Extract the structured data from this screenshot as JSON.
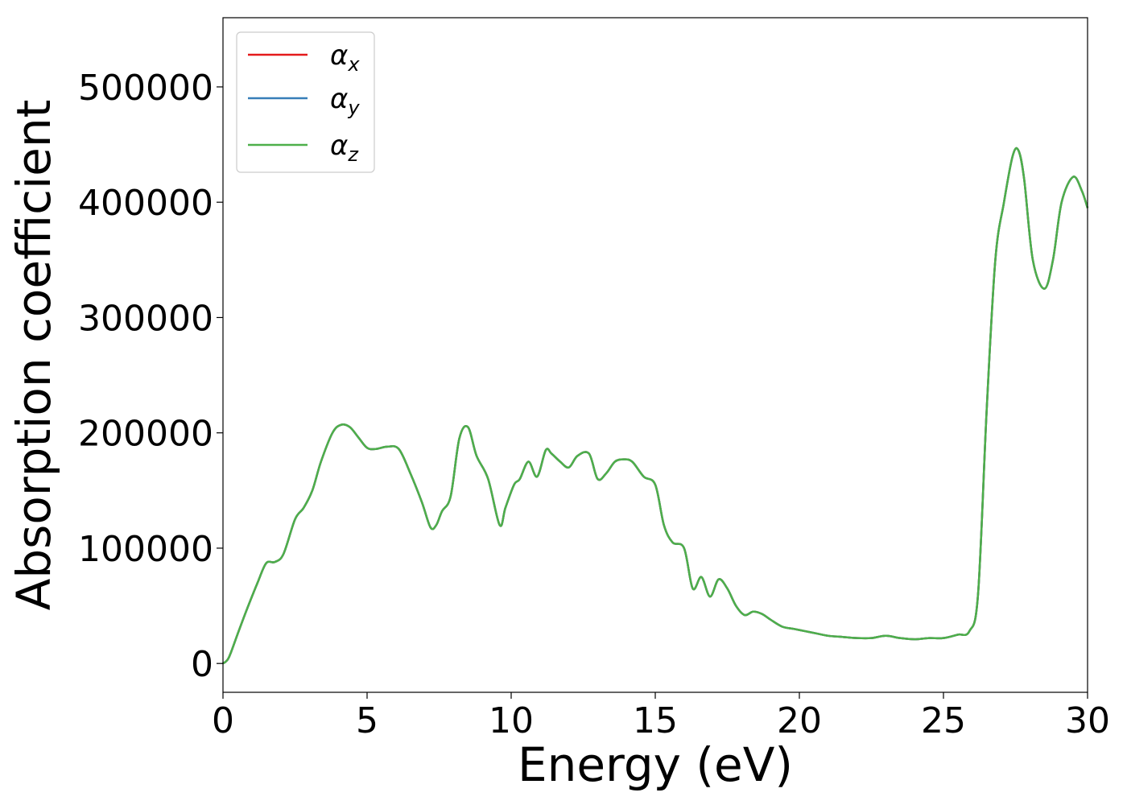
{
  "chart_data": {
    "type": "line",
    "xlabel": "Energy (eV)",
    "ylabel": "Absorption coefficient",
    "xlim": [
      0,
      30
    ],
    "ylim": [
      -25000,
      560000
    ],
    "xticks": [
      0,
      5,
      10,
      15,
      20,
      25,
      30
    ],
    "xtick_labels": [
      "0",
      "5",
      "10",
      "15",
      "20",
      "25",
      "30"
    ],
    "yticks": [
      0,
      100000,
      200000,
      300000,
      400000,
      500000
    ],
    "ytick_labels": [
      "0",
      "100000",
      "200000",
      "300000",
      "400000",
      "500000"
    ],
    "grid": false,
    "legend_position": "top-left",
    "x": [
      0,
      0.2,
      0.5,
      0.8,
      1.2,
      1.5,
      1.8,
      2.1,
      2.5,
      2.8,
      3.1,
      3.4,
      3.8,
      4.1,
      4.4,
      4.7,
      5.0,
      5.3,
      5.7,
      6.1,
      6.5,
      6.9,
      7.2,
      7.4,
      7.6,
      7.9,
      8.2,
      8.5,
      8.8,
      9.2,
      9.6,
      9.8,
      10.1,
      10.3,
      10.6,
      10.9,
      11.2,
      11.4,
      11.7,
      12.0,
      12.3,
      12.7,
      13.0,
      13.3,
      13.6,
      13.9,
      14.2,
      14.6,
      15.0,
      15.3,
      15.6,
      16.0,
      16.3,
      16.6,
      16.9,
      17.2,
      17.5,
      17.8,
      18.1,
      18.4,
      18.7,
      19.0,
      19.4,
      19.8,
      20.2,
      20.6,
      21.0,
      21.5,
      22.0,
      22.5,
      23.0,
      23.5,
      24.0,
      24.5,
      25.0,
      25.5,
      25.9,
      26.2,
      26.5,
      26.8,
      27.1,
      27.4,
      27.6,
      27.8,
      28.1,
      28.5,
      28.8,
      29.1,
      29.5,
      29.8,
      30.0
    ],
    "series": [
      {
        "name": "α_x",
        "color": "#e41a1c",
        "values": [
          0,
          5000,
          25000,
          45000,
          70000,
          87000,
          88000,
          95000,
          125000,
          135000,
          150000,
          175000,
          200000,
          207000,
          205000,
          196000,
          187000,
          186000,
          188000,
          186000,
          165000,
          140000,
          118000,
          120000,
          132000,
          145000,
          195000,
          205000,
          180000,
          160000,
          120000,
          135000,
          155000,
          160000,
          175000,
          162000,
          185000,
          182000,
          175000,
          170000,
          180000,
          182000,
          160000,
          165000,
          175000,
          177000,
          175000,
          162000,
          155000,
          120000,
          105000,
          100000,
          65000,
          75000,
          58000,
          73000,
          65000,
          50000,
          42000,
          45000,
          43000,
          38000,
          32000,
          30000,
          28000,
          26000,
          24000,
          23000,
          22000,
          22000,
          24000,
          22000,
          21000,
          22000,
          22000,
          25000,
          28000,
          60000,
          220000,
          350000,
          400000,
          440000,
          445000,
          420000,
          350000,
          325000,
          350000,
          400000,
          422000,
          410000,
          395000
        ]
      },
      {
        "name": "α_y",
        "color": "#377eb8",
        "values": [
          0,
          5000,
          25000,
          45000,
          70000,
          87000,
          88000,
          95000,
          125000,
          135000,
          150000,
          175000,
          200000,
          207000,
          205000,
          196000,
          187000,
          186000,
          188000,
          186000,
          165000,
          140000,
          118000,
          120000,
          132000,
          145000,
          195000,
          205000,
          180000,
          160000,
          120000,
          135000,
          155000,
          160000,
          175000,
          162000,
          185000,
          182000,
          175000,
          170000,
          180000,
          182000,
          160000,
          165000,
          175000,
          177000,
          175000,
          162000,
          155000,
          120000,
          105000,
          100000,
          65000,
          75000,
          58000,
          73000,
          65000,
          50000,
          42000,
          45000,
          43000,
          38000,
          32000,
          30000,
          28000,
          26000,
          24000,
          23000,
          22000,
          22000,
          24000,
          22000,
          21000,
          22000,
          22000,
          25000,
          28000,
          60000,
          220000,
          350000,
          400000,
          440000,
          445000,
          420000,
          350000,
          325000,
          350000,
          400000,
          422000,
          410000,
          395000
        ]
      },
      {
        "name": "α_z",
        "color": "#4daf4a",
        "values": [
          0,
          5000,
          25000,
          45000,
          70000,
          87000,
          88000,
          95000,
          125000,
          135000,
          150000,
          175000,
          200000,
          207000,
          205000,
          196000,
          187000,
          186000,
          188000,
          186000,
          165000,
          140000,
          118000,
          120000,
          132000,
          145000,
          195000,
          205000,
          180000,
          160000,
          120000,
          135000,
          155000,
          160000,
          175000,
          162000,
          185000,
          182000,
          175000,
          170000,
          180000,
          182000,
          160000,
          165000,
          175000,
          177000,
          175000,
          162000,
          155000,
          120000,
          105000,
          100000,
          65000,
          75000,
          58000,
          73000,
          65000,
          50000,
          42000,
          45000,
          43000,
          38000,
          32000,
          30000,
          28000,
          26000,
          24000,
          23000,
          22000,
          22000,
          24000,
          22000,
          21000,
          22000,
          22000,
          25000,
          28000,
          60000,
          220000,
          350000,
          400000,
          440000,
          445000,
          420000,
          350000,
          325000,
          350000,
          400000,
          422000,
          410000,
          395000
        ]
      }
    ],
    "legend": [
      {
        "symbol": "α",
        "sub": "x"
      },
      {
        "symbol": "α",
        "sub": "y"
      },
      {
        "symbol": "α",
        "sub": "z"
      }
    ]
  }
}
